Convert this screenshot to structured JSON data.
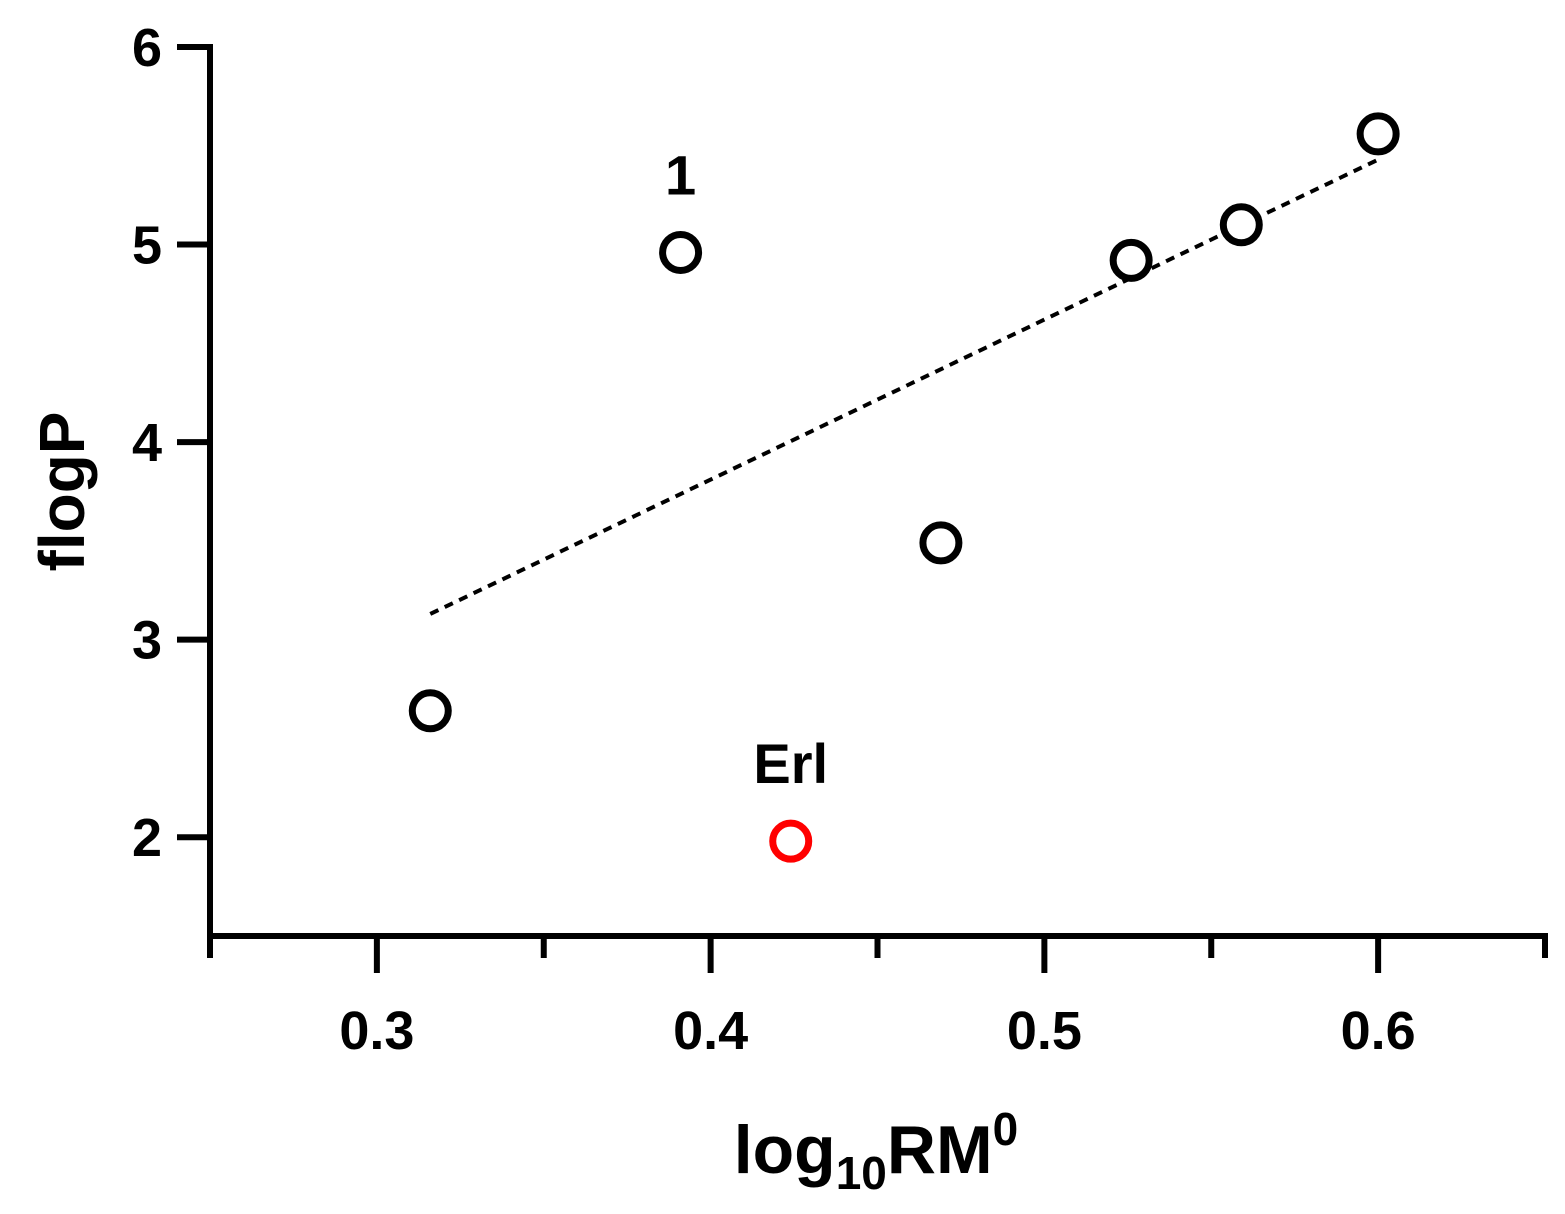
{
  "chart_data": {
    "type": "scatter",
    "title": "",
    "xlabel": {
      "base": "log",
      "subscript": "10",
      "main": "RM",
      "superscript": "0"
    },
    "ylabel": "flogP",
    "xlim": [
      0.25,
      0.65
    ],
    "ylim": [
      1.5,
      6
    ],
    "xticks_major": [
      0.3,
      0.4,
      0.5,
      0.6
    ],
    "xtick_labels": [
      "0.3",
      "0.4",
      "0.5",
      "0.6"
    ],
    "xticks_minor": [
      0.25,
      0.35,
      0.45,
      0.55,
      0.65
    ],
    "yticks": [
      2,
      3,
      4,
      5,
      6
    ],
    "ytick_labels": [
      "2",
      "3",
      "4",
      "5",
      "6"
    ],
    "grid": false,
    "series": [
      {
        "points": [
          {
            "x": 0.316,
            "y": 2.64
          },
          {
            "x": 0.391,
            "y": 4.96
          },
          {
            "x": 0.469,
            "y": 3.49
          },
          {
            "x": 0.526,
            "y": 4.92
          },
          {
            "x": 0.559,
            "y": 5.1
          },
          {
            "x": 0.6,
            "y": 5.56
          }
        ],
        "color": "#000000",
        "marker": "open-circle"
      },
      {
        "points": [
          {
            "x": 0.424,
            "y": 1.98
          }
        ],
        "color": "#ff0000",
        "marker": "open-circle"
      }
    ],
    "trendline": {
      "style": "dotted",
      "color": "#000000",
      "from": {
        "x": 0.316,
        "y": 3.13
      },
      "to": {
        "x": 0.6,
        "y": 5.43
      }
    },
    "annotations": [
      {
        "text": "1",
        "x": 0.391,
        "y": 4.96
      },
      {
        "text": "Erl",
        "x": 0.424,
        "y": 1.98
      }
    ]
  }
}
